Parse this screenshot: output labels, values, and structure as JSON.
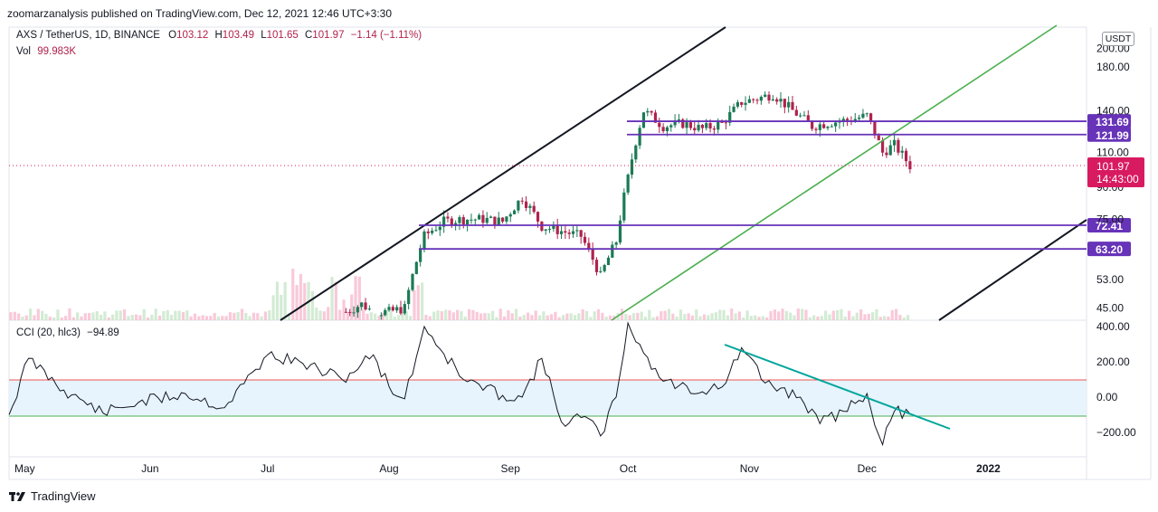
{
  "header": {
    "published": "zoomarzanalysis published on TradingView.com, Dec 12, 2021 12:46 UTC+3:30"
  },
  "legend": {
    "symbol": "AXS / TetherUS, 1D, BINANCE",
    "open_label": "O",
    "open": "103.12",
    "high_label": "H",
    "high": "103.49",
    "low_label": "L",
    "low": "101.65",
    "close_label": "C",
    "close": "101.97",
    "change": "−1.14 (−1.11%)",
    "vol_label": "Vol",
    "vol": "99.983K",
    "cci_label": "CCI (20, hlc3)",
    "cci": "−94.89"
  },
  "currency_button": "USDT",
  "footer": {
    "brand": "TradingView"
  },
  "colors": {
    "up": "#26a69a",
    "down": "#ef5350",
    "candle_up": "#1b7a55",
    "candle_down": "#b0224d",
    "level": "#6733b8",
    "channel_black": "#131722",
    "channel_green": "#4caf50",
    "cci_band": "#e3f2fd",
    "cci_trend": "#00a69c",
    "price_tag": "#d81b60"
  },
  "chart_data": [
    {
      "type": "candlestick",
      "title": "AXS / TetherUS, 1D, BINANCE",
      "scale": "log",
      "y_ticks": [
        "200.00",
        "180.00",
        "140.00",
        "110.00",
        "90.00",
        "75.00",
        "53.00",
        "45.00"
      ],
      "x_ticks": [
        "May",
        "Jun",
        "Jul",
        "Aug",
        "Sep",
        "Oct",
        "Nov",
        "Dec",
        "2022"
      ],
      "last_price": "101.97",
      "countdown": "14:43:00",
      "levels": [
        {
          "label": "131.69",
          "value": 131.69
        },
        {
          "label": "121.99",
          "value": 121.99
        },
        {
          "label": "72.41",
          "value": 72.41
        },
        {
          "label": "63.20",
          "value": 63.2
        }
      ],
      "series": [
        {
          "x": [
            "2021-07-21",
            "2021-07-25",
            "2021-07-28",
            "2021-08-01",
            "2021-08-05",
            "2021-08-10",
            "2021-08-15",
            "2021-08-20",
            "2021-08-25",
            "2021-08-30",
            "2021-09-04",
            "2021-09-09",
            "2021-09-14",
            "2021-09-19",
            "2021-09-24",
            "2021-09-28",
            "2021-10-01",
            "2021-10-05",
            "2021-10-10",
            "2021-10-15",
            "2021-10-20",
            "2021-10-25",
            "2021-10-30",
            "2021-11-03",
            "2021-11-07",
            "2021-11-12",
            "2021-11-17",
            "2021-11-22",
            "2021-11-27",
            "2021-12-01",
            "2021-12-05",
            "2021-12-08",
            "2021-12-12"
          ],
          "close": [
            44,
            46,
            44,
            44,
            45,
            68,
            74,
            75,
            75,
            74,
            85,
            72,
            70,
            68,
            54,
            66,
            95,
            140,
            128,
            130,
            126,
            130,
            147,
            150,
            154,
            140,
            128,
            131,
            133,
            136,
            110,
            115,
            101.97
          ]
        }
      ]
    },
    {
      "type": "line",
      "title": "CCI (20, hlc3)",
      "y_ticks": [
        "400.00",
        "200.00",
        "0.00",
        "−200.00"
      ],
      "x": [
        "2021-04-26",
        "2021-05-01",
        "2021-05-10",
        "2021-05-20",
        "2021-05-29",
        "2021-06-10",
        "2021-06-20",
        "2021-07-01",
        "2021-07-10",
        "2021-07-20",
        "2021-07-28",
        "2021-08-01",
        "2021-08-05",
        "2021-08-10",
        "2021-08-20",
        "2021-08-30",
        "2021-09-04",
        "2021-09-09",
        "2021-09-14",
        "2021-09-20",
        "2021-09-24",
        "2021-09-28",
        "2021-10-01",
        "2021-10-05",
        "2021-10-10",
        "2021-10-20",
        "2021-10-26",
        "2021-10-30",
        "2021-11-05",
        "2021-11-14",
        "2021-11-19",
        "2021-11-25",
        "2021-12-01",
        "2021-12-05",
        "2021-12-08",
        "2021-12-12"
      ],
      "values": [
        -100,
        220,
        40,
        -90,
        -30,
        20,
        -60,
        240,
        190,
        100,
        240,
        60,
        -10,
        400,
        100,
        10,
        0,
        220,
        -140,
        -110,
        -220,
        0,
        420,
        250,
        90,
        30,
        80,
        280,
        80,
        0,
        -150,
        -80,
        20,
        -270,
        -80,
        -94.89
      ]
    }
  ]
}
